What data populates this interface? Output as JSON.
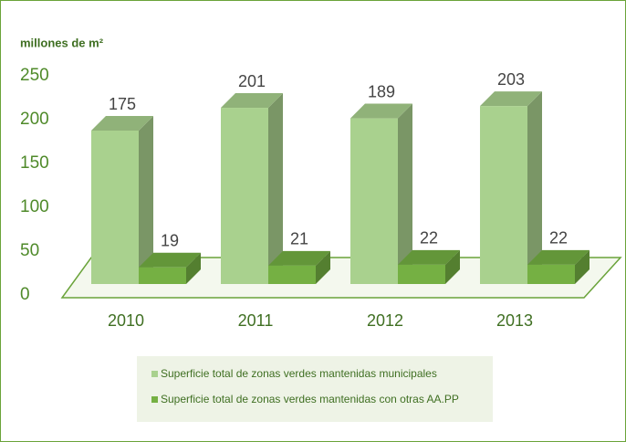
{
  "chart_data": {
    "type": "bar3d",
    "y_axis_label": "millones de m²",
    "categories": [
      "2010",
      "2011",
      "2012",
      "2013"
    ],
    "series": [
      {
        "name": "Superficie total de zonas verdes mantenidas municipales",
        "color": "#a9d18e",
        "values": [
          175,
          201,
          189,
          203
        ]
      },
      {
        "name": "Superficie total de zonas verdes mantenidas con otras AA.PP",
        "color": "#75b043",
        "values": [
          19,
          21,
          22,
          22
        ]
      }
    ],
    "ylim": [
      0,
      250
    ],
    "yticks": [
      0,
      50,
      100,
      150,
      200,
      250
    ]
  }
}
